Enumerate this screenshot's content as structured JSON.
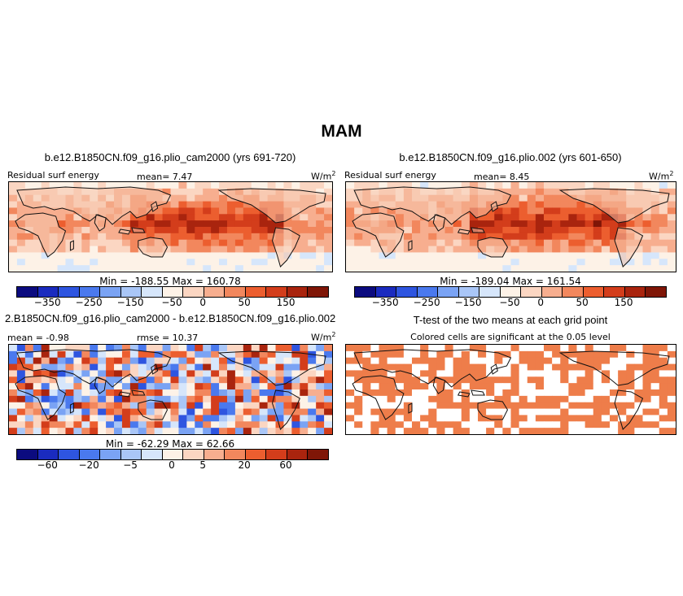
{
  "figure": {
    "title": "MAM"
  },
  "colors": {
    "scale": [
      "#0b0b7f",
      "#1a2bbf",
      "#2e55e0",
      "#4a79ee",
      "#7aa3f4",
      "#a9c6f7",
      "#d6e6fb",
      "#fdf2e7",
      "#fbd6c2",
      "#f7ae8f",
      "#f2875d",
      "#ec5e2f",
      "#d33d1b",
      "#a9240e",
      "#7f1607"
    ],
    "land": "#f6c1a6",
    "significant": "#ee7d4a"
  },
  "chart_data": [
    {
      "type": "heatmap",
      "title": "b.e12.B1850CN.f09_g16.plio_cam2000 (yrs 691-720)",
      "left_label": "Residual surf energy",
      "mean_label": "mean=   7.47",
      "units_label": "W/m",
      "units_sup": "2",
      "stats": "Min = -188.55 Max = 160.78",
      "colorbar_ticks": [
        "-350",
        "-250",
        "-150",
        "-50",
        "0",
        "50",
        "150"
      ],
      "mean": 7.47,
      "min": -188.55,
      "max": 160.78
    },
    {
      "type": "heatmap",
      "title": "b.e12.B1850CN.f09_g16.plio.002 (yrs 601-650)",
      "left_label": "Residual surf energy",
      "mean_label": "mean=   8.45",
      "units_label": "W/m",
      "units_sup": "2",
      "stats": "Min = -189.04 Max = 161.54",
      "colorbar_ticks": [
        "-350",
        "-250",
        "-150",
        "-50",
        "0",
        "50",
        "150"
      ],
      "mean": 8.45,
      "min": -189.04,
      "max": 161.54
    },
    {
      "type": "heatmap",
      "title": "2.B1850CN.f09_g16.plio_cam2000 - b.e12.B1850CN.f09_g16.plio.002",
      "left_label": "mean =  -0.98",
      "mean_label": "rmse =  10.37",
      "units_label": "W/m",
      "units_sup": "2",
      "stats": "Min = -62.29 Max =  62.66",
      "colorbar_ticks": [
        "-60",
        "-20",
        "-5",
        "0",
        "5",
        "20",
        "60"
      ],
      "mean": -0.98,
      "rmse": 10.37,
      "min": -62.29,
      "max": 62.66
    },
    {
      "type": "heatmap",
      "title": "T-test of the two means at each grid point",
      "subtitle": "Colored cells are significant at the 0.05 level"
    }
  ]
}
